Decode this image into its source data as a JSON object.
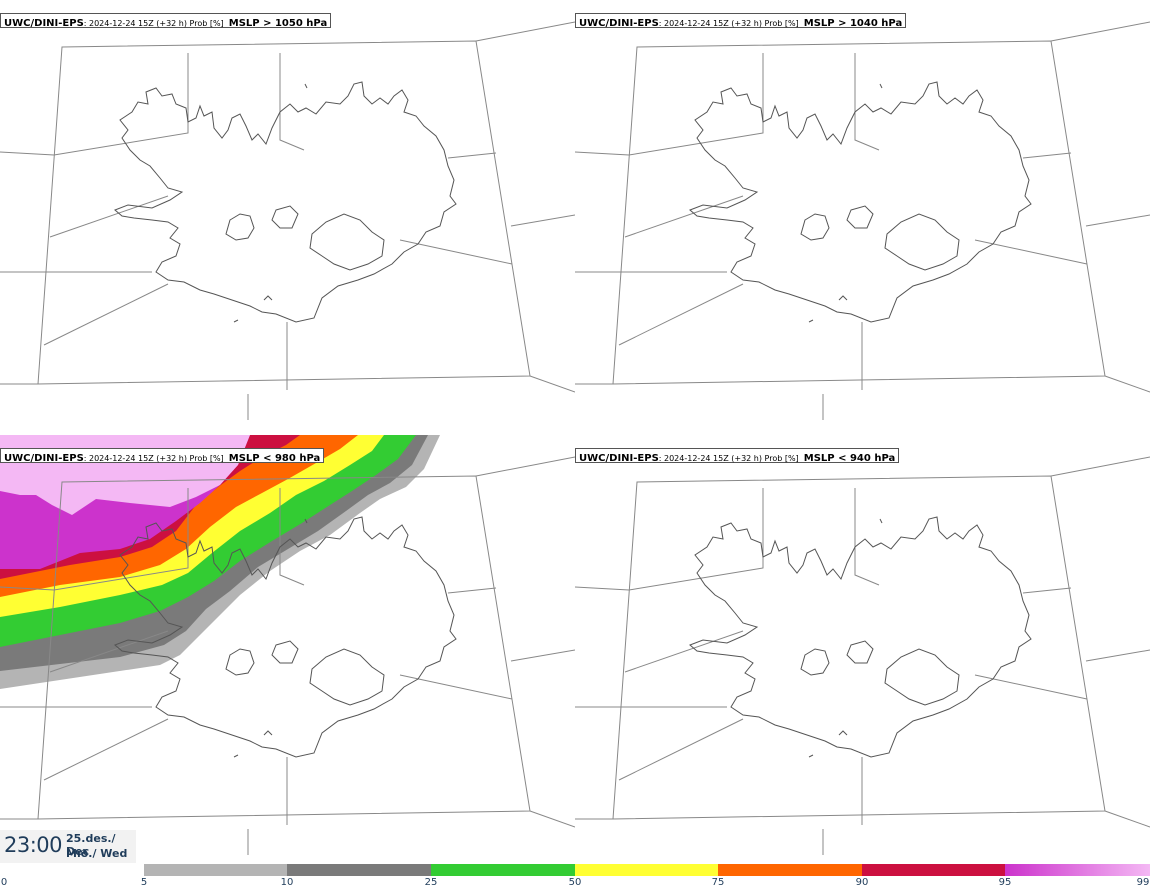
{
  "panels": [
    {
      "model": "UWC/DINI-EPS",
      "run": ": 2024-12-24 15Z (+32 h) Prob [%]",
      "variable": "MSLP > 1050 hPa"
    },
    {
      "model": "UWC/DINI-EPS",
      "run": ": 2024-12-24 15Z (+32 h) Prob [%]",
      "variable": "MSLP > 1040 hPa"
    },
    {
      "model": "UWC/DINI-EPS",
      "run": ": 2024-12-24 15Z (+32 h) Prob [%]",
      "variable": "MSLP < 980 hPa"
    },
    {
      "model": "UWC/DINI-EPS",
      "run": ": 2024-12-24 15Z (+32 h) Prob [%]",
      "variable": "MSLP < 940 hPa"
    }
  ],
  "valid_time": {
    "time": "23:00",
    "date": "25.des./ Dec",
    "day": "Mið./ Wed"
  },
  "colorbar": {
    "ticks": [
      "0",
      "5",
      "10",
      "25",
      "50",
      "75",
      "90",
      "95",
      "99"
    ],
    "segments": [
      {
        "from": "5",
        "to": "10",
        "color": "#b4b4b4"
      },
      {
        "from": "10",
        "to": "25",
        "color": "#7a7a7a"
      },
      {
        "from": "25",
        "to": "50",
        "color": "#33cc33"
      },
      {
        "from": "50",
        "to": "75",
        "color": "#ffff33"
      },
      {
        "from": "75",
        "to": "90",
        "color": "#ff6600"
      },
      {
        "from": "90",
        "to": "95",
        "color": "#cc1040"
      },
      {
        "from": "95",
        "to": "99",
        "color": "#cc33cc",
        "color_end": "#f4b8f4"
      }
    ]
  },
  "colors": {
    "coastline": "#555555",
    "borders": "#888888",
    "label_text": "#1f3c5a"
  }
}
